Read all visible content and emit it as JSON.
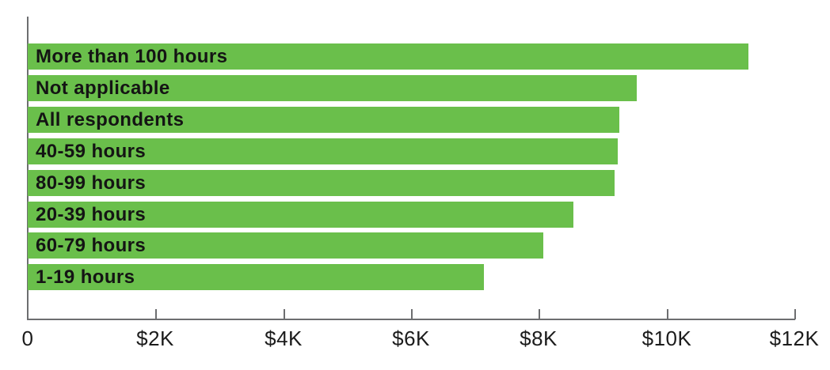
{
  "chart_data": {
    "type": "bar",
    "orientation": "horizontal",
    "title": "",
    "xlabel": "",
    "ylabel": "",
    "grid": false,
    "legend": false,
    "bar_color": "#6abf4b",
    "label_text_color": "#141414",
    "axis_color": "#6d6e70",
    "xlim": [
      0,
      12000
    ],
    "categories": [
      "More than 100 hours",
      "Not applicable",
      "All respondents",
      "40-59 hours",
      "80-99 hours",
      "20-39 hours",
      "60-79 hours",
      "1-19 hours"
    ],
    "values": [
      11280,
      9530,
      9260,
      9230,
      9190,
      8540,
      8070,
      7140
    ],
    "x_ticks": [
      {
        "value": 0,
        "label": "0"
      },
      {
        "value": 2000,
        "label": "$2K"
      },
      {
        "value": 4000,
        "label": "$4K"
      },
      {
        "value": 6000,
        "label": "$6K"
      },
      {
        "value": 8000,
        "label": "$8K"
      },
      {
        "value": 10000,
        "label": "$10K"
      },
      {
        "value": 12000,
        "label": "$12K"
      }
    ]
  }
}
